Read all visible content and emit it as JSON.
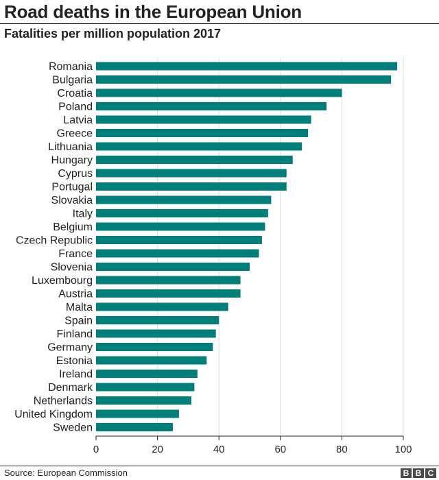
{
  "header": {
    "title": "Road deaths in the European Union",
    "subtitle": "Fatalities per million population 2017"
  },
  "footer": {
    "source": "Source: European Commission",
    "logo": "BBC"
  },
  "colors": {
    "bar": "#007f7a",
    "grid": "#dddddd",
    "axis": "#222222"
  },
  "chart_data": {
    "type": "bar",
    "orientation": "horizontal",
    "categories": [
      "Romania",
      "Bulgaria",
      "Croatia",
      "Poland",
      "Latvia",
      "Greece",
      "Lithuania",
      "Hungary",
      "Cyprus",
      "Portugal",
      "Slovakia",
      "Italy",
      "Belgium",
      "Czech Republic",
      "France",
      "Slovenia",
      "Luxembourg",
      "Austria",
      "Malta",
      "Spain",
      "Finland",
      "Germany",
      "Estonia",
      "Ireland",
      "Denmark",
      "Netherlands",
      "United Kingdom",
      "Sweden"
    ],
    "values": [
      98,
      96,
      80,
      75,
      70,
      69,
      67,
      64,
      62,
      62,
      57,
      56,
      55,
      54,
      53,
      50,
      47,
      47,
      43,
      40,
      39,
      38,
      36,
      33,
      32,
      31,
      27,
      25
    ],
    "xlim": [
      0,
      100
    ],
    "xticks": [
      0,
      20,
      40,
      60,
      80,
      100
    ],
    "grid": true,
    "title": "Road deaths in the European Union",
    "subtitle": "Fatalities per million population 2017",
    "xlabel": "",
    "ylabel": ""
  }
}
